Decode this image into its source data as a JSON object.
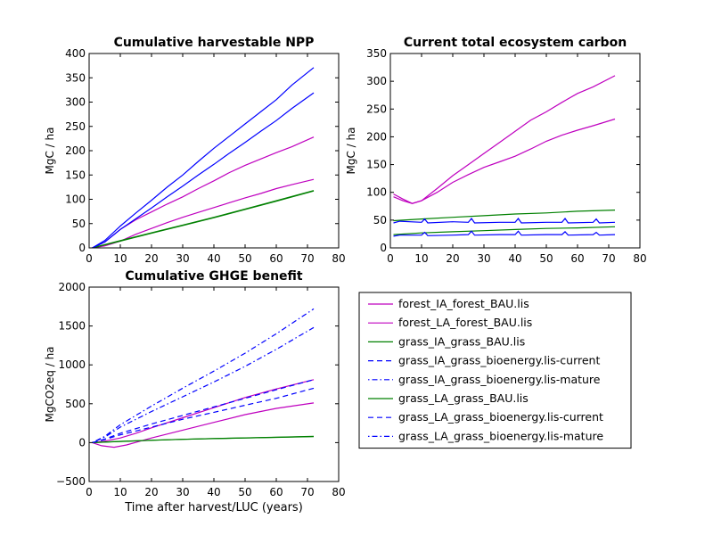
{
  "colors": {
    "magenta": "#bf00bf",
    "green": "#008000",
    "blue": "#0000ff"
  },
  "chart_data": [
    {
      "type": "line",
      "title": "Cumulative harvestable NPP",
      "xlabel": "",
      "ylabel": "MgC / ha",
      "xlim": [
        0,
        80
      ],
      "ylim": [
        0,
        400
      ],
      "xticks": [
        "0",
        "10",
        "20",
        "30",
        "40",
        "50",
        "60",
        "70",
        "80"
      ],
      "yticks": [
        "0",
        "50",
        "100",
        "150",
        "200",
        "250",
        "300",
        "350",
        "400"
      ],
      "series": [
        {
          "color": "#bf00bf",
          "dash": "solid",
          "x": [
            1,
            5,
            10,
            15,
            20,
            25,
            30,
            35,
            40,
            45,
            50,
            55,
            60,
            65,
            72
          ],
          "y": [
            0,
            12,
            38,
            58,
            74,
            90,
            105,
            122,
            138,
            155,
            170,
            183,
            196,
            208,
            228
          ]
        },
        {
          "color": "#bf00bf",
          "dash": "solid",
          "x": [
            1,
            5,
            10,
            15,
            20,
            25,
            30,
            35,
            40,
            45,
            50,
            55,
            60,
            65,
            72
          ],
          "y": [
            0,
            4,
            14,
            28,
            40,
            52,
            63,
            73,
            83,
            93,
            103,
            112,
            122,
            130,
            141
          ]
        },
        {
          "color": "#008000",
          "dash": "solid",
          "x": [
            1,
            10,
            20,
            30,
            40,
            50,
            60,
            72
          ],
          "y": [
            0,
            15,
            31,
            47,
            63,
            80,
            97,
            118
          ]
        },
        {
          "color": "#008000",
          "dash": "solid",
          "x": [
            1,
            10,
            20,
            30,
            40,
            50,
            60,
            72
          ],
          "y": [
            0,
            14,
            30,
            46,
            62,
            79,
            96,
            117
          ]
        },
        {
          "color": "#0000ff",
          "dash": "solid",
          "x": [
            1,
            5,
            10,
            15,
            20,
            25,
            30,
            35,
            40,
            45,
            50,
            55,
            60,
            65,
            72
          ],
          "y": [
            0,
            15,
            45,
            72,
            98,
            125,
            150,
            178,
            205,
            230,
            255,
            280,
            305,
            335,
            371
          ]
        },
        {
          "color": "#0000ff",
          "dash": "solid",
          "x": [
            1,
            5,
            10,
            15,
            20,
            25,
            30,
            35,
            40,
            45,
            50,
            55,
            60,
            65,
            72
          ],
          "y": [
            0,
            12,
            38,
            60,
            82,
            105,
            127,
            150,
            172,
            195,
            217,
            240,
            262,
            287,
            319
          ]
        }
      ]
    },
    {
      "type": "line",
      "title": "Current total ecosystem carbon",
      "xlabel": "",
      "ylabel": "MgC / ha",
      "xlim": [
        0,
        80
      ],
      "ylim": [
        0,
        350
      ],
      "xticks": [
        "0",
        "10",
        "20",
        "30",
        "40",
        "50",
        "60",
        "70",
        "80"
      ],
      "yticks": [
        "0",
        "50",
        "100",
        "150",
        "200",
        "250",
        "300",
        "350"
      ],
      "series": [
        {
          "color": "#bf00bf",
          "dash": "solid",
          "x": [
            1,
            4,
            7,
            10,
            15,
            20,
            25,
            30,
            35,
            40,
            45,
            50,
            55,
            60,
            65,
            72
          ],
          "y": [
            97,
            88,
            80,
            85,
            107,
            130,
            150,
            170,
            190,
            210,
            230,
            245,
            262,
            278,
            290,
            310
          ]
        },
        {
          "color": "#bf00bf",
          "dash": "solid",
          "x": [
            1,
            4,
            7,
            10,
            15,
            20,
            25,
            30,
            35,
            40,
            45,
            50,
            55,
            60,
            65,
            72
          ],
          "y": [
            92,
            85,
            80,
            85,
            100,
            118,
            132,
            145,
            155,
            165,
            178,
            192,
            203,
            212,
            220,
            232
          ]
        },
        {
          "color": "#008000",
          "dash": "solid",
          "x": [
            1,
            10,
            20,
            30,
            40,
            50,
            60,
            72
          ],
          "y": [
            49,
            52,
            55,
            58,
            61,
            63,
            66,
            68
          ]
        },
        {
          "color": "#008000",
          "dash": "solid",
          "x": [
            1,
            10,
            20,
            30,
            40,
            50,
            60,
            72
          ],
          "y": [
            24,
            27,
            29,
            31,
            33,
            35,
            36,
            38
          ]
        },
        {
          "color": "#0000ff",
          "dash": "solid",
          "x": [
            1,
            3,
            10,
            11,
            12,
            20,
            25,
            26,
            27,
            35,
            40,
            41,
            42,
            50,
            55,
            56,
            57,
            65,
            66,
            67,
            72
          ],
          "y": [
            45,
            48,
            46,
            52,
            45,
            47,
            46,
            53,
            45,
            46,
            46,
            53,
            45,
            46,
            46,
            53,
            45,
            46,
            52,
            45,
            46
          ]
        },
        {
          "color": "#0000ff",
          "dash": "solid",
          "x": [
            1,
            3,
            10,
            11,
            12,
            20,
            25,
            26,
            27,
            35,
            40,
            41,
            42,
            50,
            55,
            56,
            57,
            65,
            66,
            67,
            72
          ],
          "y": [
            21,
            23,
            23,
            28,
            22,
            23,
            24,
            30,
            23,
            24,
            24,
            30,
            23,
            24,
            24,
            29,
            23,
            24,
            28,
            23,
            24
          ]
        }
      ]
    },
    {
      "type": "line",
      "title": "Cumulative GHGE benefit",
      "xlabel": "Time after harvest/LUC (years)",
      "ylabel": "MgCO2eq / ha",
      "xlim": [
        0,
        80
      ],
      "ylim": [
        -500,
        2000
      ],
      "xticks": [
        "0",
        "10",
        "20",
        "30",
        "40",
        "50",
        "60",
        "70",
        "80"
      ],
      "yticks": [
        "−500",
        "0",
        "500",
        "1000",
        "1500",
        "2000"
      ],
      "series": [
        {
          "color": "#bf00bf",
          "dash": "solid",
          "x": [
            1,
            4,
            8,
            12,
            20,
            30,
            40,
            50,
            60,
            72
          ],
          "y": [
            0,
            -40,
            -60,
            -30,
            60,
            160,
            260,
            360,
            440,
            510
          ]
        },
        {
          "color": "#bf00bf",
          "dash": "solid",
          "x": [
            1,
            5,
            10,
            15,
            20,
            30,
            40,
            50,
            60,
            72
          ],
          "y": [
            0,
            20,
            60,
            120,
            190,
            320,
            450,
            580,
            690,
            810
          ]
        },
        {
          "color": "#008000",
          "dash": "solid",
          "x": [
            1,
            10,
            20,
            30,
            40,
            50,
            60,
            72
          ],
          "y": [
            0,
            15,
            30,
            42,
            52,
            60,
            68,
            78
          ]
        },
        {
          "color": "#0000ff",
          "dash": "dashed",
          "x": [
            1,
            5,
            10,
            20,
            30,
            40,
            50,
            60,
            72
          ],
          "y": [
            0,
            40,
            100,
            200,
            300,
            390,
            480,
            570,
            700
          ]
        },
        {
          "color": "#0000ff",
          "dash": "dotted",
          "x": [
            1,
            5,
            10,
            20,
            30,
            40,
            50,
            60,
            72
          ],
          "y": [
            0,
            80,
            230,
            470,
            700,
            920,
            1150,
            1400,
            1720
          ]
        },
        {
          "color": "#008000",
          "dash": "solid",
          "x": [
            1,
            10,
            20,
            30,
            40,
            50,
            60,
            72
          ],
          "y": [
            0,
            16,
            31,
            43,
            53,
            61,
            69,
            80
          ]
        },
        {
          "color": "#0000ff",
          "dash": "dashed",
          "x": [
            1,
            5,
            10,
            20,
            30,
            40,
            50,
            60,
            72
          ],
          "y": [
            0,
            45,
            120,
            240,
            350,
            460,
            570,
            680,
            810
          ]
        },
        {
          "color": "#0000ff",
          "dash": "dotted",
          "x": [
            1,
            5,
            10,
            20,
            30,
            40,
            50,
            60,
            72
          ],
          "y": [
            0,
            70,
            200,
            400,
            590,
            780,
            980,
            1200,
            1480
          ]
        }
      ]
    }
  ],
  "legend": {
    "placement": "bottom-right",
    "entries": [
      {
        "label": "forest_IA_forest_BAU.lis",
        "color": "#bf00bf",
        "dash": "solid"
      },
      {
        "label": "forest_LA_forest_BAU.lis",
        "color": "#bf00bf",
        "dash": "solid"
      },
      {
        "label": "grass_IA_grass_BAU.lis",
        "color": "#008000",
        "dash": "solid"
      },
      {
        "label": "grass_IA_grass_bioenergy.lis-current",
        "color": "#0000ff",
        "dash": "dashed"
      },
      {
        "label": "grass_IA_grass_bioenergy.lis-mature",
        "color": "#0000ff",
        "dash": "dotted"
      },
      {
        "label": "grass_LA_grass_BAU.lis",
        "color": "#008000",
        "dash": "solid"
      },
      {
        "label": "grass_LA_grass_bioenergy.lis-current",
        "color": "#0000ff",
        "dash": "dashed"
      },
      {
        "label": "grass_LA_grass_bioenergy.lis-mature",
        "color": "#0000ff",
        "dash": "dotted"
      }
    ]
  }
}
